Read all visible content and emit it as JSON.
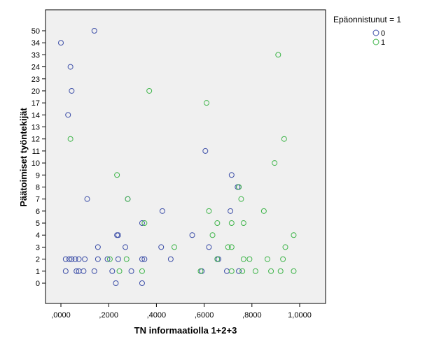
{
  "chart_data": {
    "type": "scatter",
    "xlabel": "TN informaatiolla 1+2+3",
    "ylabel": "Päätoimiset työntekijät",
    "xlim": [
      -0.06,
      1.04
    ],
    "x_ticks": [
      {
        "value": 0.0,
        "label": ",0000"
      },
      {
        "value": 0.2,
        "label": ",2000"
      },
      {
        "value": 0.4,
        "label": ",4000"
      },
      {
        "value": 0.6,
        "label": ",6000"
      },
      {
        "value": 0.8,
        "label": ",8000"
      },
      {
        "value": 1.0,
        "label": "1,0000"
      }
    ],
    "y_categories": [
      "0",
      "1",
      "2",
      "3",
      "4",
      "5",
      "6",
      "7",
      "8",
      "9",
      "10",
      "11",
      "12",
      "13",
      "14",
      "17",
      "20",
      "23",
      "24",
      "33",
      "34",
      "50"
    ],
    "grid": false,
    "background": "#f0f0f0",
    "legend": {
      "title": "Epäonnistunut = 1",
      "placement": "top-right",
      "entries": [
        {
          "label": "0",
          "color": "#3d4fa8"
        },
        {
          "label": "1",
          "color": "#3fb54a"
        }
      ]
    },
    "series": [
      {
        "name": "0",
        "color": "#3d4fa8",
        "points": [
          [
            0.14,
            "50"
          ],
          [
            0.0,
            "34"
          ],
          [
            0.04,
            "24"
          ],
          [
            0.045,
            "20"
          ],
          [
            0.03,
            "14"
          ],
          [
            0.605,
            "11"
          ],
          [
            0.715,
            "9"
          ],
          [
            0.74,
            "8"
          ],
          [
            0.745,
            "8"
          ],
          [
            0.11,
            "7"
          ],
          [
            0.28,
            "7"
          ],
          [
            0.425,
            "6"
          ],
          [
            0.71,
            "6"
          ],
          [
            0.34,
            "5"
          ],
          [
            0.235,
            "4"
          ],
          [
            0.24,
            "4"
          ],
          [
            0.55,
            "4"
          ],
          [
            0.155,
            "3"
          ],
          [
            0.27,
            "3"
          ],
          [
            0.42,
            "3"
          ],
          [
            0.62,
            "3"
          ],
          [
            0.02,
            "2"
          ],
          [
            0.035,
            "2"
          ],
          [
            0.045,
            "2"
          ],
          [
            0.06,
            "2"
          ],
          [
            0.075,
            "2"
          ],
          [
            0.1,
            "2"
          ],
          [
            0.155,
            "2"
          ],
          [
            0.195,
            "2"
          ],
          [
            0.24,
            "2"
          ],
          [
            0.34,
            "2"
          ],
          [
            0.35,
            "2"
          ],
          [
            0.46,
            "2"
          ],
          [
            0.655,
            "2"
          ],
          [
            0.66,
            "2"
          ],
          [
            0.02,
            "1"
          ],
          [
            0.065,
            "1"
          ],
          [
            0.075,
            "1"
          ],
          [
            0.095,
            "1"
          ],
          [
            0.14,
            "1"
          ],
          [
            0.215,
            "1"
          ],
          [
            0.295,
            "1"
          ],
          [
            0.59,
            "1"
          ],
          [
            0.695,
            "1"
          ],
          [
            0.745,
            "1"
          ],
          [
            0.23,
            "0"
          ],
          [
            0.34,
            "0"
          ]
        ]
      },
      {
        "name": "1",
        "color": "#3fb54a",
        "points": [
          [
            0.91,
            "33"
          ],
          [
            0.37,
            "20"
          ],
          [
            0.61,
            "17"
          ],
          [
            0.04,
            "12"
          ],
          [
            0.935,
            "12"
          ],
          [
            0.895,
            "10"
          ],
          [
            0.235,
            "9"
          ],
          [
            0.745,
            "8"
          ],
          [
            0.28,
            "7"
          ],
          [
            0.755,
            "7"
          ],
          [
            0.62,
            "6"
          ],
          [
            0.85,
            "6"
          ],
          [
            0.35,
            "5"
          ],
          [
            0.655,
            "5"
          ],
          [
            0.715,
            "5"
          ],
          [
            0.765,
            "5"
          ],
          [
            0.635,
            "4"
          ],
          [
            0.975,
            "4"
          ],
          [
            0.475,
            "3"
          ],
          [
            0.7,
            "3"
          ],
          [
            0.715,
            "3"
          ],
          [
            0.94,
            "3"
          ],
          [
            0.205,
            "2"
          ],
          [
            0.275,
            "2"
          ],
          [
            0.655,
            "2"
          ],
          [
            0.765,
            "2"
          ],
          [
            0.79,
            "2"
          ],
          [
            0.865,
            "2"
          ],
          [
            0.93,
            "2"
          ],
          [
            0.245,
            "1"
          ],
          [
            0.34,
            "1"
          ],
          [
            0.585,
            "1"
          ],
          [
            0.715,
            "1"
          ],
          [
            0.76,
            "1"
          ],
          [
            0.815,
            "1"
          ],
          [
            0.88,
            "1"
          ],
          [
            0.92,
            "1"
          ],
          [
            0.975,
            "1"
          ]
        ]
      }
    ]
  }
}
